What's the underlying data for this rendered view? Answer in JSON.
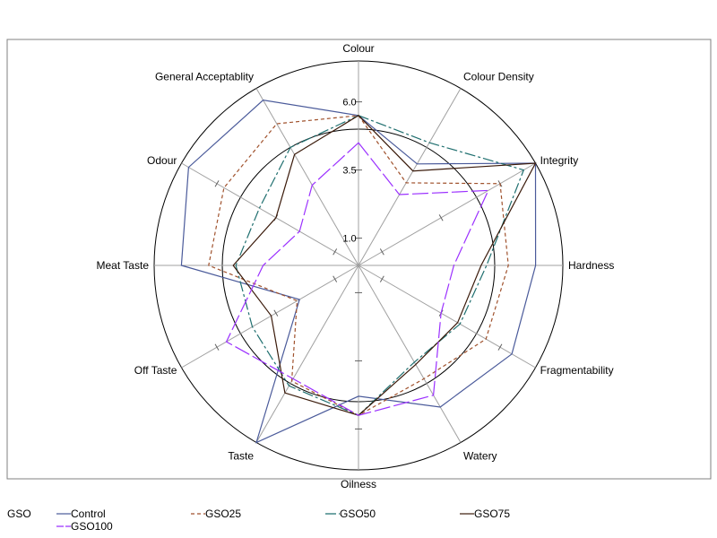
{
  "chart_data": {
    "type": "radar",
    "axes": [
      "Colour",
      "Colour Density",
      "Integrity",
      "Hardness",
      "Fragmentability",
      "Watery",
      "Oilness",
      "Taste",
      "Off Taste",
      "Meat Taste",
      "Odour",
      "General Acceptablity"
    ],
    "rlim": [
      0,
      6.0
    ],
    "ticks": [
      {
        "value": 1.0,
        "label": "1.0"
      },
      {
        "value": 3.5,
        "label": "3.5"
      },
      {
        "value": 6.0,
        "label": "6.0"
      }
    ],
    "reference_circles": [
      5.0,
      7.5
    ],
    "series": [
      {
        "name": "Control",
        "color": "#4a5a9a",
        "dash": "",
        "values": [
          5.5,
          4.3,
          7.5,
          6.5,
          6.5,
          6.0,
          4.8,
          7.5,
          2.5,
          6.5,
          7.2,
          7.0
        ]
      },
      {
        "name": "GSO25",
        "color": "#a0522d",
        "dash": "4,3",
        "values": [
          5.5,
          3.5,
          6.0,
          5.5,
          5.4,
          4.8,
          5.5,
          4.9,
          2.6,
          5.5,
          5.7,
          6.0
        ]
      },
      {
        "name": "GSO50",
        "color": "#1f6f6f",
        "dash": "12,3,3,3",
        "values": [
          5.5,
          5.2,
          7.0,
          4.7,
          4.3,
          4.1,
          5.5,
          5.1,
          4.5,
          4.5,
          4.2,
          5.0
        ]
      },
      {
        "name": "GSO75",
        "color": "#3a1a0a",
        "dash": "",
        "values": [
          5.5,
          4.0,
          7.5,
          4.5,
          4.2,
          4.2,
          5.5,
          5.4,
          3.7,
          4.6,
          3.5,
          4.7
        ]
      },
      {
        "name": "GSO100",
        "color": "#9b30ff",
        "dash": "18,4",
        "values": [
          4.5,
          3.0,
          5.5,
          3.5,
          3.5,
          5.5,
          5.5,
          4.8,
          5.6,
          3.5,
          2.5,
          3.4
        ]
      }
    ]
  },
  "legend": {
    "title": "GSO"
  }
}
